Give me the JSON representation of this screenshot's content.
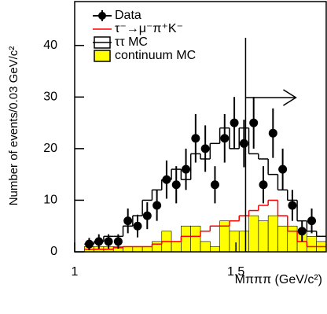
{
  "chart_data": {
    "type": "histogram",
    "y_label": "Number of events/0.03 GeV/c²",
    "x_label": "Mπππ (GeV/c²)",
    "bins": [
      1.03,
      1.06,
      1.09,
      1.12,
      1.15,
      1.18,
      1.21,
      1.24,
      1.27,
      1.3,
      1.33,
      1.36,
      1.39,
      1.42,
      1.45,
      1.48,
      1.51,
      1.54,
      1.57,
      1.6,
      1.63,
      1.66,
      1.69,
      1.72,
      1.75,
      1.78
    ],
    "series": [
      {
        "name": "Data",
        "color": "#000000",
        "style": "points",
        "values": [
          1.5,
          2,
          2,
          2,
          6,
          5,
          7,
          9,
          14,
          13,
          16,
          22,
          20,
          13,
          22,
          25,
          21,
          25,
          13,
          23,
          16,
          9,
          4,
          6,
          null
        ],
        "errors": [
          1.2,
          1.4,
          1.4,
          1.4,
          2.4,
          2.2,
          2.6,
          3,
          3.7,
          3.6,
          4,
          4.7,
          4.5,
          3.6,
          4.7,
          5,
          4.6,
          5,
          3.6,
          4.8,
          4,
          3,
          2,
          2.4,
          null
        ]
      },
      {
        "name": "τ⁻→μ⁻π⁺K⁻",
        "color": "#ff0000",
        "style": "step",
        "values": [
          0.5,
          0.5,
          0.5,
          0.8,
          1,
          1,
          1,
          1.5,
          2,
          2,
          3,
          3,
          4,
          5,
          5,
          6,
          7,
          8,
          9,
          10,
          7,
          4,
          2,
          1,
          1
        ]
      },
      {
        "name": "ττ MC",
        "color": "#000000",
        "style": "step",
        "values": [
          1.5,
          2,
          3,
          3,
          5,
          7,
          10,
          12,
          14,
          16,
          14,
          19,
          18,
          21,
          24,
          20,
          24,
          19,
          18,
          15,
          12,
          10,
          6,
          4,
          3
        ]
      },
      {
        "name": "continuum MC",
        "color": "#ffff00",
        "style": "filled",
        "values": [
          1,
          1,
          1,
          1,
          1,
          1,
          1,
          2,
          4,
          2,
          5,
          5,
          2,
          1,
          6,
          4,
          4,
          7,
          6,
          7,
          5,
          5,
          4,
          3,
          2
        ]
      }
    ],
    "cut_x": 1.53,
    "xlim": [
      1,
      1.78
    ],
    "ylim": [
      0,
      48.5
    ],
    "xticks": [
      1,
      1.5
    ],
    "yticks": [
      0,
      10,
      20,
      30,
      40
    ]
  }
}
